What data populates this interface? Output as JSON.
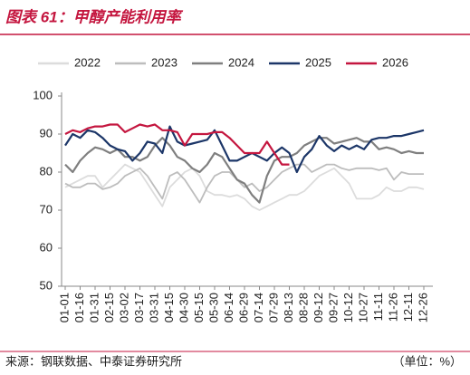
{
  "chart_data": {
    "type": "line",
    "title": "图表 61：甲醇产能利用率",
    "source": "来源：钢联数据、中泰证券研究所",
    "unit_note": "（单位：%）",
    "categories": [
      "01-01",
      null,
      "01-16",
      null,
      "01-31",
      null,
      "02-15",
      null,
      "03-02",
      null,
      "03-17",
      null,
      "03-31",
      null,
      "04-15",
      null,
      "04-30",
      null,
      "05-15",
      null,
      "05-30",
      null,
      "06-14",
      null,
      "06-29",
      null,
      "07-14",
      null,
      "07-29",
      null,
      "08-13",
      null,
      "08-28",
      null,
      "09-12",
      null,
      "09-27",
      null,
      "10-12",
      null,
      "10-27",
      null,
      "11-11",
      null,
      "11-26",
      null,
      "12-11",
      null,
      "12-26"
    ],
    "ylim": [
      50,
      100
    ],
    "yticks": [
      50,
      60,
      70,
      80,
      90,
      100
    ],
    "grid": false,
    "series": [
      {
        "name": "2022",
        "color": "#dcdcdc",
        "values": [
          76,
          77,
          78,
          79,
          79,
          76,
          78,
          80,
          82,
          81,
          80,
          77,
          74,
          71,
          76,
          78,
          80,
          81,
          79,
          75,
          74,
          74,
          73.5,
          74,
          73,
          71,
          70,
          71,
          72,
          73,
          74,
          74,
          75,
          77,
          79,
          80,
          81,
          79,
          77,
          73,
          73,
          73,
          74,
          76,
          75,
          75,
          76,
          76,
          75.5
        ]
      },
      {
        "name": "2023",
        "color": "#bdbdbd",
        "values": [
          77,
          76,
          76,
          77,
          77,
          75.5,
          76,
          77,
          79,
          80,
          81,
          79,
          76,
          73,
          79,
          80,
          78,
          75,
          72,
          76,
          79,
          80,
          80,
          78,
          76,
          77,
          75,
          76,
          78,
          80,
          81,
          82,
          82,
          80,
          81,
          82,
          82,
          81,
          80.5,
          81,
          81,
          81,
          80.5,
          81,
          78,
          80,
          79.5,
          79.5,
          79.5
        ]
      },
      {
        "name": "2024",
        "color": "#7f7f7f",
        "values": [
          82,
          80,
          83,
          85,
          86.5,
          86,
          85,
          86,
          84,
          84,
          83,
          84,
          87,
          89,
          87,
          84,
          83,
          81,
          80,
          82,
          85,
          84,
          81,
          78,
          77,
          74,
          72,
          79,
          83,
          84,
          84,
          85,
          87,
          88,
          89,
          89,
          87.5,
          88,
          88.5,
          89,
          88,
          88,
          86,
          86.5,
          86,
          85,
          85.5,
          85,
          85
        ]
      },
      {
        "name": "2025",
        "color": "#1c3668",
        "values": [
          87,
          90,
          89,
          91,
          90.5,
          89,
          87,
          86,
          85.5,
          83,
          85,
          88,
          87.5,
          85,
          92,
          88,
          87,
          87.5,
          88,
          88.5,
          91,
          87,
          83,
          83,
          84,
          85,
          84,
          83,
          85,
          86.5,
          85,
          80,
          84,
          86,
          89.5,
          87,
          85.5,
          87,
          86,
          87,
          86,
          88.5,
          89,
          89,
          89.5,
          89.5,
          90,
          90.5,
          91
        ]
      },
      {
        "name": "2026",
        "color": "#c4163f",
        "values": [
          90,
          91,
          90.5,
          91.5,
          92,
          92,
          92.5,
          92.5,
          90.5,
          91.5,
          92.5,
          92,
          92.5,
          91,
          91,
          90.5,
          87,
          90,
          90,
          90,
          90.5,
          90.5,
          89,
          87,
          85,
          85,
          85,
          88,
          85,
          82,
          82,
          null,
          null,
          null,
          null,
          null,
          null,
          null,
          null,
          null,
          null,
          null,
          null,
          null,
          null,
          null,
          null,
          null,
          null
        ]
      }
    ]
  }
}
